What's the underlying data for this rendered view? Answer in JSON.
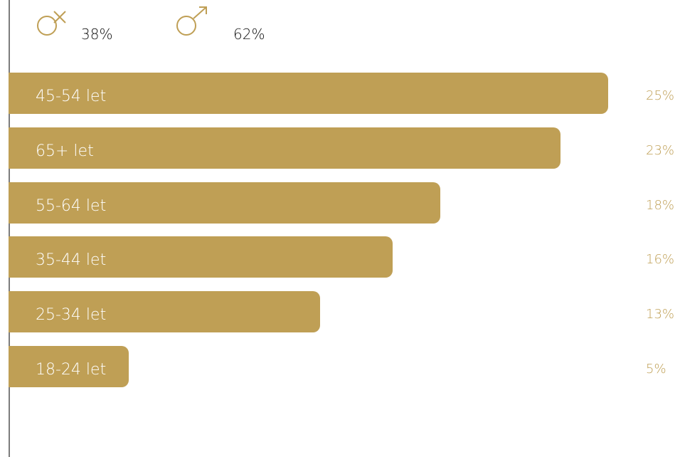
{
  "colors": {
    "bar": "#bf9f55",
    "label_on_bar": "#ffffff",
    "value": "#bf9f55",
    "axis": "#7c7c7c"
  },
  "gender": [
    {
      "icon": "female-symbol-icon",
      "value": "38%"
    },
    {
      "icon": "male-symbol-icon",
      "value": "62%"
    }
  ],
  "chart_data": {
    "type": "bar",
    "orientation": "horizontal",
    "categories": [
      "45-54 let",
      "65+ let",
      "55-64 let",
      "35-44 let",
      "25-34 let",
      "18-24 let"
    ],
    "values": [
      25,
      23,
      18,
      16,
      13,
      5
    ],
    "value_labels": [
      "25%",
      "23%",
      "18%",
      "16%",
      "13%",
      "5%"
    ],
    "unit": "%",
    "xlim": [
      0,
      25
    ]
  }
}
